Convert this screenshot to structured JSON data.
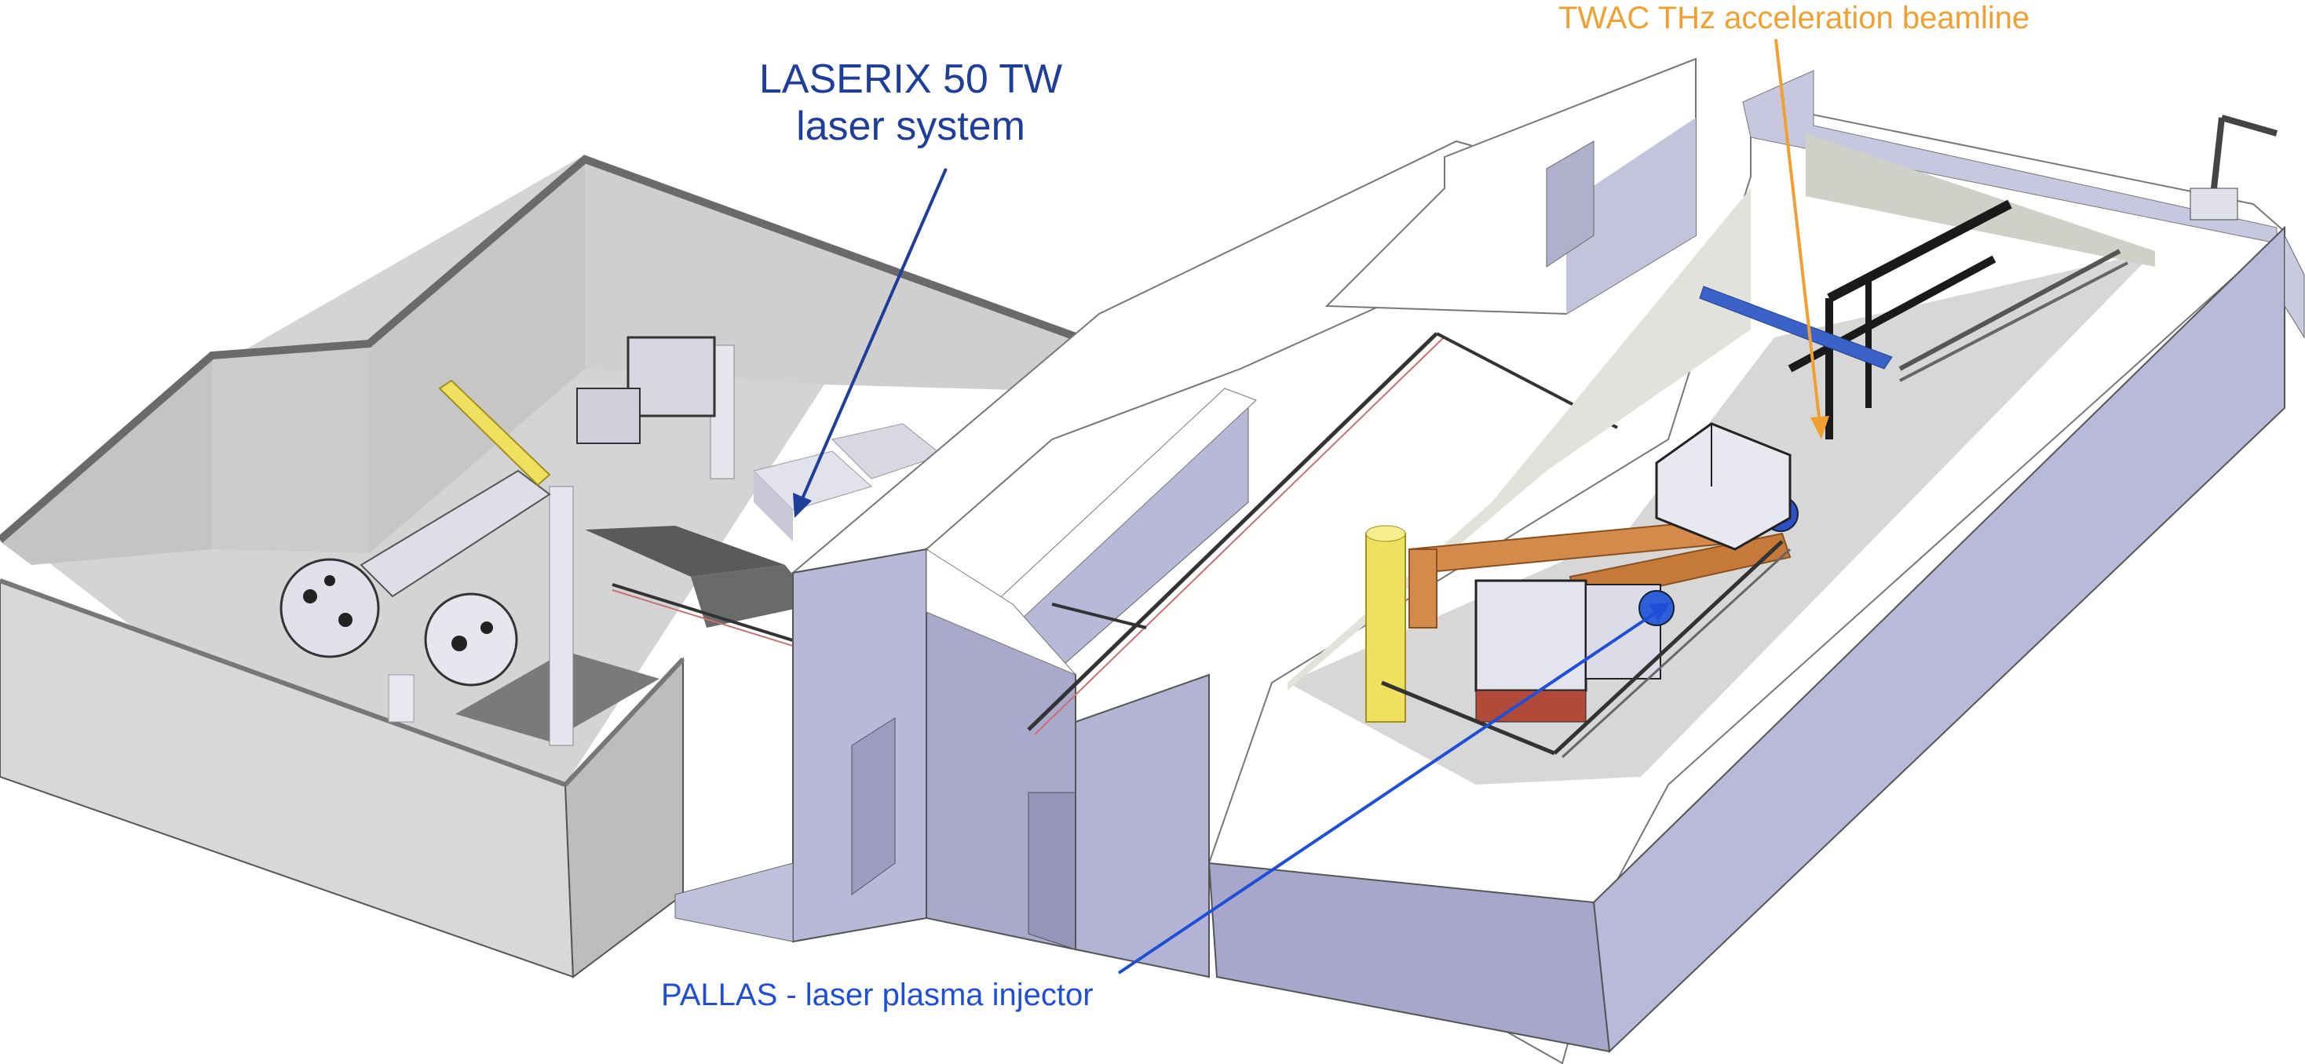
{
  "labels": {
    "laserix_line1": "LASERIX 50 TW",
    "laserix_line2": "laser system",
    "twac": "TWAC THz acceleration beamline",
    "pallas": "PALLAS - laser plasma injector"
  },
  "colors": {
    "laserix": "#1e3e9a",
    "twac": "#f0a030",
    "pallas": "#1f4fd6",
    "wall_top": "#ffffff",
    "wall_side": "#b8b8d8",
    "wall_side_dark": "#a5a5c8",
    "floor": "#d4d4d4",
    "interior_wall": "#c9c9c9",
    "equipment_dark": "#2a2a2a",
    "equipment_gray": "#8f8f95",
    "equipment_light": "#dcdce6",
    "crane_yellow": "#f0e060",
    "crane_orange": "#d48a4a",
    "beamline_blue": "#3a62c8"
  }
}
